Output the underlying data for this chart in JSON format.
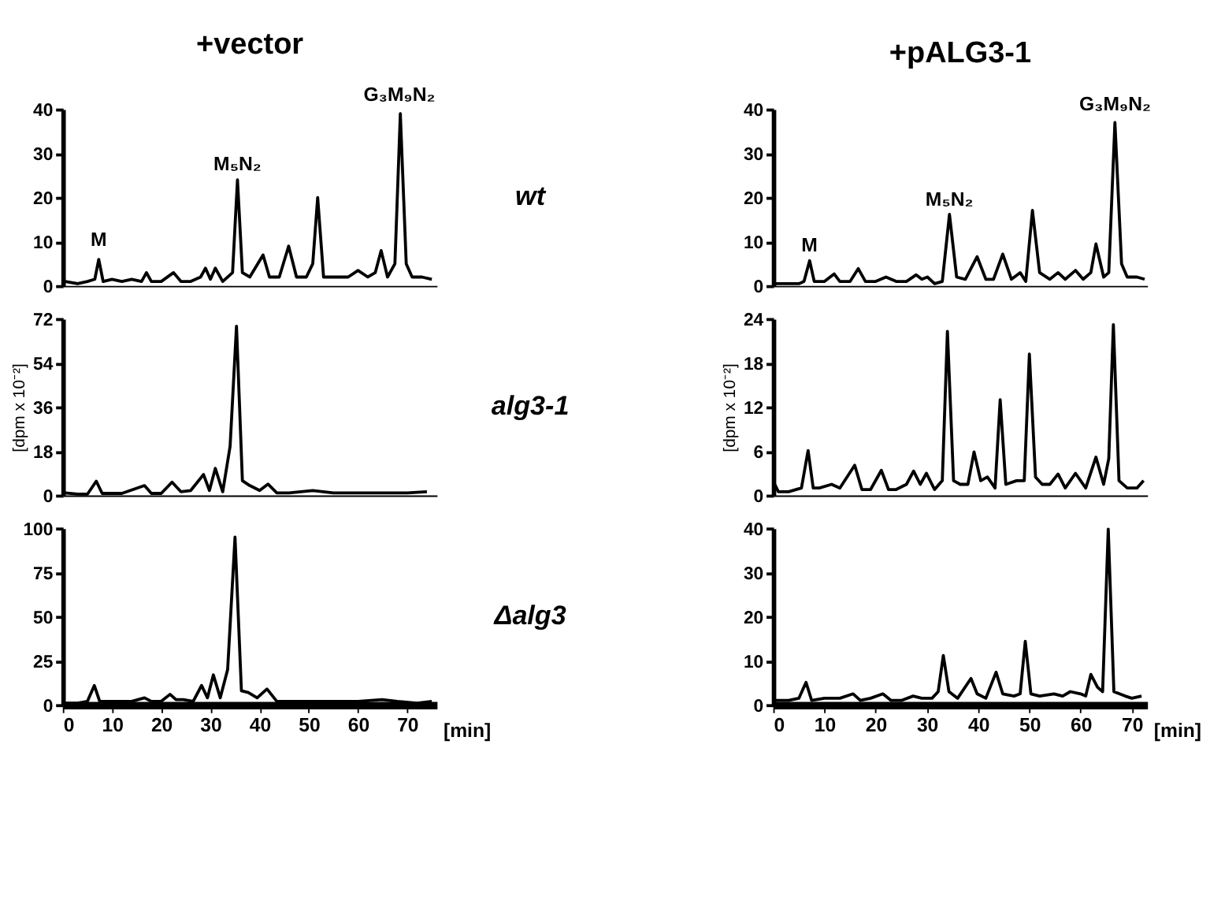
{
  "chart_data": [
    {
      "type": "line",
      "title": "+vector",
      "xlim": [
        0,
        76
      ],
      "ylim": [
        0,
        40
      ],
      "yticks": [
        0,
        10,
        20,
        30,
        40
      ],
      "tick_labels": "y",
      "grid": false,
      "marker": "none",
      "line_style": "solid",
      "x": [
        0.5,
        3,
        5,
        6.5,
        7.3,
        8.2,
        10,
        12,
        14,
        16,
        17,
        18,
        20,
        22.5,
        24,
        26,
        28,
        29,
        30,
        31,
        32.5,
        34.5,
        35.5,
        36.5,
        38,
        40.7,
        42,
        44,
        45.9,
        47.5,
        49.5,
        50.8,
        51.8,
        53,
        55,
        58,
        60,
        62,
        63.5,
        64.7,
        66,
        67.5,
        68.6,
        69.8,
        71,
        73,
        75
      ],
      "series": [
        {
          "color": "#000000",
          "values": [
            1,
            0.5,
            1,
            1.5,
            6,
            1,
            1.5,
            1,
            1.5,
            1,
            3,
            1,
            1,
            3,
            1,
            1,
            2,
            4,
            1.5,
            4,
            1,
            3,
            24,
            3,
            2,
            7,
            2,
            2,
            9,
            2,
            2,
            5,
            20,
            2,
            2,
            2,
            3.5,
            2,
            3,
            8,
            2,
            5,
            39,
            5,
            2,
            2,
            1.5
          ]
        }
      ],
      "annotations": [
        "M",
        "M₅N₂",
        "G₃M₉N₂",
        "wt"
      ]
    },
    {
      "type": "line",
      "title": "+pALG3-1",
      "xlim": [
        0,
        73
      ],
      "ylim": [
        0,
        40
      ],
      "yticks": [
        0,
        10,
        20,
        30,
        40
      ],
      "tick_labels": "y",
      "grid": false,
      "marker": "none",
      "line_style": "solid",
      "x": [
        0.5,
        3,
        5,
        6,
        7.1,
        8,
        10,
        11.9,
        13,
        15,
        16.6,
        18,
        20,
        22,
        24,
        26,
        27.9,
        29,
        30.1,
        31.5,
        33,
        34.4,
        35.8,
        37.5,
        39.8,
        41.5,
        43,
        44.8,
        46.5,
        48.2,
        49.3,
        50.6,
        52,
        54,
        55.6,
        57,
        59,
        60.5,
        62,
        63,
        64.5,
        65.5,
        66.7,
        68,
        69.1,
        71,
        72.5
      ],
      "series": [
        {
          "color": "#000000",
          "values": [
            0.5,
            0.5,
            0.5,
            1,
            5.7,
            1,
            1,
            2.7,
            1,
            1,
            3.9,
            1,
            1,
            2,
            1,
            1,
            2.5,
            1.5,
            2,
            0.5,
            1,
            16.2,
            2,
            1.5,
            6.6,
            1.5,
            1.5,
            7.2,
            1.5,
            3,
            1,
            17.1,
            3,
            1.5,
            3,
            1.5,
            3.5,
            1.5,
            3,
            9.5,
            2,
            3,
            37,
            5,
            2,
            2,
            1.5
          ]
        }
      ],
      "annotations": [
        "M",
        "M₅N₂",
        "G₃M₉N₂"
      ]
    },
    {
      "type": "line",
      "ylabel": "[dpm x 10⁻²]",
      "xlim": [
        0,
        76
      ],
      "ylim": [
        0,
        72
      ],
      "yticks": [
        0,
        18,
        36,
        54,
        72
      ],
      "tick_labels": "y",
      "grid": false,
      "marker": "none",
      "line_style": "solid",
      "x": [
        0.5,
        3,
        5,
        6.8,
        8,
        12,
        16.6,
        18,
        20,
        22.2,
        24,
        26,
        28.6,
        29.8,
        31,
        32.5,
        34,
        35.3,
        36.5,
        38,
        40,
        41.7,
        43.5,
        46,
        50.8,
        55,
        60,
        65,
        70,
        74
      ],
      "series": [
        {
          "color": "#000000",
          "values": [
            1,
            0.5,
            0.5,
            5.8,
            0.8,
            0.8,
            4,
            0.8,
            0.8,
            5.4,
            1.5,
            2,
            8.5,
            2,
            11,
            1.5,
            20,
            69,
            6,
            4,
            2,
            4.6,
            1,
            1,
            2,
            1,
            1,
            1,
            1,
            1.5
          ]
        }
      ],
      "annotations": [
        "alg3-1"
      ]
    },
    {
      "type": "line",
      "ylabel": "[dpm x 10⁻²]",
      "xlim": [
        0,
        73
      ],
      "ylim": [
        0,
        24
      ],
      "yticks": [
        0,
        6,
        12,
        18,
        24
      ],
      "tick_labels": "y",
      "grid": false,
      "marker": "none",
      "line_style": "solid",
      "x": [
        0.3,
        1,
        3,
        5.5,
        6.8,
        7.8,
        9,
        11.4,
        13,
        15.9,
        17.3,
        19,
        21.1,
        22.5,
        24,
        26,
        27.4,
        28.7,
        29.9,
        31.5,
        33,
        34,
        35.2,
        36.5,
        38,
        39.2,
        40.5,
        41.8,
        43.3,
        44.3,
        45.4,
        47.5,
        49,
        50,
        51.2,
        52.5,
        54,
        55.6,
        57,
        59,
        61,
        63,
        64.5,
        65.5,
        66.4,
        67.5,
        69.1,
        71,
        72.3
      ],
      "series": [
        {
          "color": "#000000",
          "values": [
            1.5,
            0.5,
            0.5,
            1,
            6.1,
            1,
            1,
            1.5,
            1,
            4.1,
            0.8,
            0.8,
            3.4,
            0.8,
            0.8,
            1.5,
            3.3,
            1.5,
            3,
            0.8,
            2,
            22.3,
            2,
            1.5,
            1.5,
            5.9,
            2,
            2.5,
            1,
            13,
            1.5,
            2,
            2,
            19.2,
            2.5,
            1.5,
            1.5,
            2.9,
            1,
            3,
            1,
            5.2,
            1.5,
            5,
            23.2,
            2,
            1,
            1,
            2
          ]
        }
      ]
    },
    {
      "type": "line",
      "xlabel": "[min]",
      "xlim": [
        0,
        76
      ],
      "xticks": [
        0,
        10,
        20,
        30,
        40,
        50,
        60,
        70
      ],
      "ylim": [
        0,
        100
      ],
      "yticks": [
        0,
        25,
        50,
        75,
        100
      ],
      "grid": false,
      "marker": "none",
      "line_style": "solid",
      "x": [
        0.5,
        3,
        5,
        6.4,
        7.5,
        10,
        14,
        16.6,
        18,
        20,
        21.8,
        23,
        24.5,
        26.5,
        28.2,
        29.4,
        30.6,
        32,
        33.5,
        35,
        36.3,
        37.7,
        39.5,
        41.5,
        43.5,
        46,
        50,
        55,
        60,
        64.9,
        68,
        72,
        75
      ],
      "series": [
        {
          "color": "#000000",
          "values": [
            1,
            1,
            2,
            11,
            2,
            2,
            2,
            4,
            2,
            2,
            6,
            3,
            3,
            2,
            11,
            4,
            17,
            4,
            20,
            95,
            8,
            7,
            4,
            9,
            2,
            2,
            2,
            2,
            2,
            3,
            2,
            1,
            2
          ]
        }
      ],
      "annotations": [
        "Δalg3"
      ]
    },
    {
      "type": "line",
      "xlabel": "[min]",
      "xlim": [
        0,
        73
      ],
      "xticks": [
        0,
        10,
        20,
        30,
        40,
        50,
        60,
        70
      ],
      "ylim": [
        0,
        40
      ],
      "yticks": [
        0,
        10,
        20,
        30,
        40
      ],
      "grid": false,
      "marker": "none",
      "line_style": "solid",
      "x": [
        0.3,
        3,
        5,
        6.4,
        7.5,
        10,
        13,
        15.6,
        17,
        19,
        21.4,
        23,
        25,
        27.3,
        29,
        31,
        32.2,
        33.2,
        34.3,
        36,
        38.6,
        39.8,
        41.5,
        43.5,
        44.8,
        47,
        48.2,
        49.2,
        50.3,
        52,
        54.8,
        56.5,
        58,
        60,
        61,
        62,
        63.3,
        64.3,
        65.4,
        66.5,
        68.7,
        70,
        71.9
      ],
      "series": [
        {
          "color": "#000000",
          "values": [
            1,
            1,
            1.5,
            5.1,
            1,
            1.5,
            1.5,
            2.5,
            1,
            1.5,
            2.5,
            1,
            1,
            2,
            1.5,
            1.5,
            3,
            11.2,
            3,
            1.5,
            6,
            2.5,
            1.5,
            7.4,
            2.5,
            2,
            2.5,
            14.4,
            2.5,
            2,
            2.5,
            2,
            3,
            2.5,
            2,
            6.9,
            4,
            3,
            39.8,
            3,
            2,
            1.5,
            2
          ]
        }
      ]
    }
  ]
}
